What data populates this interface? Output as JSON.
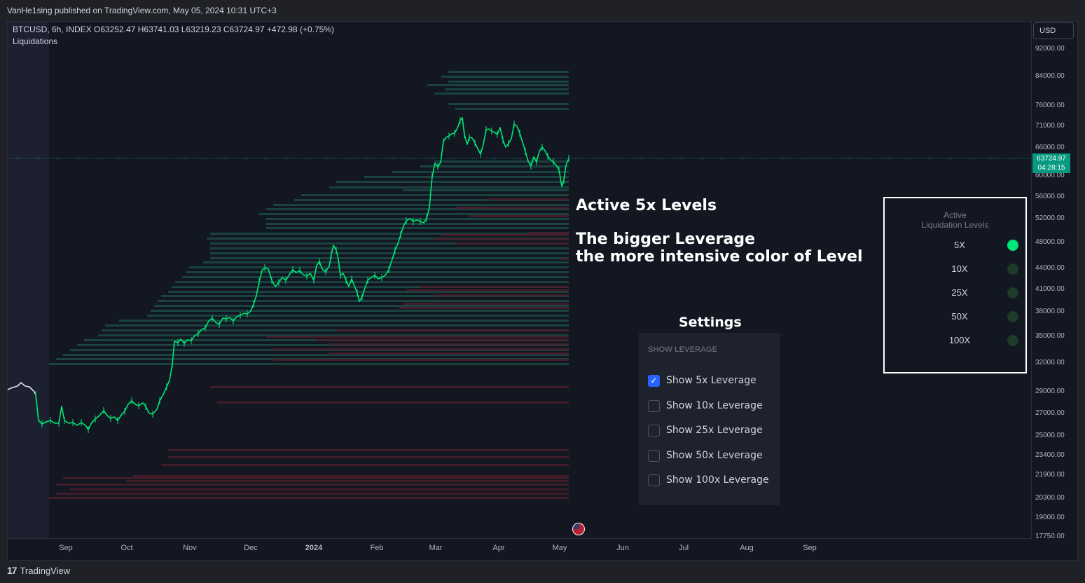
{
  "publish": {
    "text": "VanHe1sing published on TradingView.com, May 05, 2024 10:31 UTC+3"
  },
  "legend": {
    "symbol_line": "BTCUSD, 6h, INDEX  O63252.47  H63741.03  L63219.23  C63724.97  +472.98 (+0.75%)",
    "indicator": "Liquidations"
  },
  "currency": "USD",
  "price_scale": [
    "92000.00",
    "84000.00",
    "76000.00",
    "71000.00",
    "66000.00",
    "60000.00",
    "56000.00",
    "52000.00",
    "48000.00",
    "44000.00",
    "41000.00",
    "38000.00",
    "35000.00",
    "32000.00",
    "29000.00",
    "27000.00",
    "25000.00",
    "23400.00",
    "21900.00",
    "20300.00",
    "19000.00",
    "17750.00"
  ],
  "time_scale": [
    "Sep",
    "Oct",
    "Nov",
    "Dec",
    "2024",
    "Feb",
    "Mar",
    "Apr",
    "May",
    "Jun",
    "Jul",
    "Aug",
    "Sep"
  ],
  "last_price": {
    "value": "63724.97",
    "countdown": "04:28:15"
  },
  "annotation": {
    "title": "Active 5x Levels",
    "line1": "The bigger Leverage",
    "line2": "the more intensive color of Level"
  },
  "settings": {
    "title": "Settings",
    "section": "SHOW LEVERAGE",
    "options": [
      {
        "label": "Show 5x Leverage",
        "checked": true
      },
      {
        "label": "Show 10x Leverage",
        "checked": false
      },
      {
        "label": "Show 25x Leverage",
        "checked": false
      },
      {
        "label": "Show 50x Leverage",
        "checked": false
      },
      {
        "label": "Show 100x Leverage",
        "checked": false
      }
    ]
  },
  "levels_table": {
    "header_line1": "Active",
    "header_line2": "Liquidation Levels",
    "rows": [
      {
        "label": "5X",
        "active": true
      },
      {
        "label": "10X",
        "active": false
      },
      {
        "label": "25X",
        "active": false
      },
      {
        "label": "50X",
        "active": false
      },
      {
        "label": "100X",
        "active": false
      }
    ]
  },
  "colors": {
    "up": "#00e676",
    "active_dot": "#00e676",
    "inactive_dot": "#1e3a2a",
    "long_level": "#1b4a45",
    "short_level": "#4a1f2b",
    "price_tag": "#089981"
  },
  "footer": {
    "brand": "TradingView"
  }
}
